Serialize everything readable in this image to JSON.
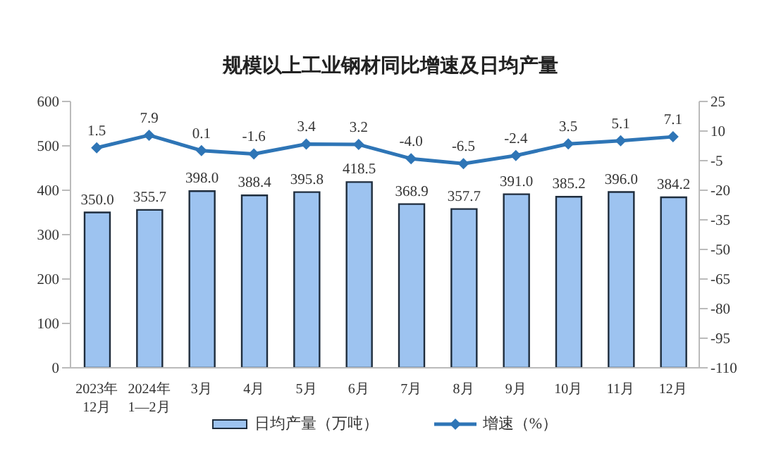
{
  "chart_data": {
    "type": "bar",
    "title": "规模以上工业钢材同比增速及日均产量",
    "categories": [
      "2023年\n12月",
      "2024年\n1—2月",
      "3月",
      "4月",
      "5月",
      "6月",
      "7月",
      "8月",
      "9月",
      "10月",
      "11月",
      "12月"
    ],
    "series": [
      {
        "name": "日均产量（万吨）",
        "color": "#9dc3f0",
        "values": [
          350.0,
          355.7,
          398.0,
          388.4,
          395.8,
          418.5,
          368.9,
          357.7,
          391.0,
          385.2,
          396.0,
          384.2
        ],
        "value_labels": [
          "350.0",
          "355.7",
          "398.0",
          "388.4",
          "395.8",
          "418.5",
          "368.9",
          "357.7",
          "391.0",
          "385.2",
          "396.0",
          "384.2"
        ]
      },
      {
        "name": "增速（%）",
        "type": "line",
        "axis": "y2",
        "color": "#2e75b6",
        "marker": "diamond",
        "values": [
          1.5,
          7.9,
          0.1,
          -1.6,
          3.4,
          3.2,
          -4.0,
          -6.5,
          -2.4,
          3.5,
          5.1,
          7.1
        ],
        "value_labels": [
          "1.5",
          "7.9",
          "0.1",
          "-1.6",
          "3.4",
          "3.2",
          "-4.0",
          "-6.5",
          "-2.4",
          "3.5",
          "5.1",
          "7.1"
        ]
      }
    ],
    "ylim": [
      0,
      600
    ],
    "yticks": [
      0,
      100,
      200,
      300,
      400,
      500,
      600
    ],
    "y2lim": [
      -110,
      25
    ],
    "y2ticks": [
      -110,
      -95,
      -80,
      -65,
      -50,
      -35,
      -20,
      -5,
      10,
      25
    ],
    "grid": false,
    "legend": "bottom"
  }
}
